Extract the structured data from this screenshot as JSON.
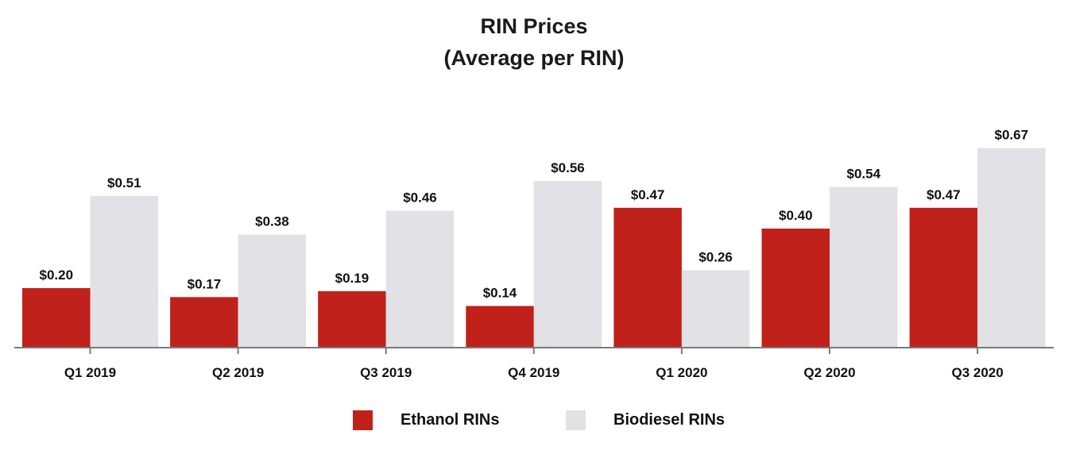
{
  "chart_data": {
    "type": "bar",
    "title": "RIN Prices",
    "subtitle": "(Average per RIN)",
    "categories": [
      "Q1 2019",
      "Q2 2019",
      "Q3 2019",
      "Q4 2019",
      "Q1 2020",
      "Q2 2020",
      "Q3 2020"
    ],
    "series": [
      {
        "name": "Ethanol RINs",
        "color": "#c0211a",
        "values": [
          0.2,
          0.17,
          0.19,
          0.14,
          0.47,
          0.4,
          0.47
        ],
        "labels": [
          "$0.20",
          "$0.17",
          "$0.19",
          "$0.14",
          "$0.47",
          "$0.40",
          "$0.47"
        ]
      },
      {
        "name": "Biodiesel RINs",
        "color": "#e1e1e6",
        "values": [
          0.51,
          0.38,
          0.46,
          0.56,
          0.26,
          0.54,
          0.67
        ],
        "labels": [
          "$0.51",
          "$0.38",
          "$0.46",
          "$0.56",
          "$0.26",
          "$0.54",
          "$0.67"
        ]
      }
    ],
    "ylim": [
      0,
      0.72
    ],
    "xlabel": "",
    "ylabel": "",
    "grid": false,
    "legend": "bottom-center"
  }
}
